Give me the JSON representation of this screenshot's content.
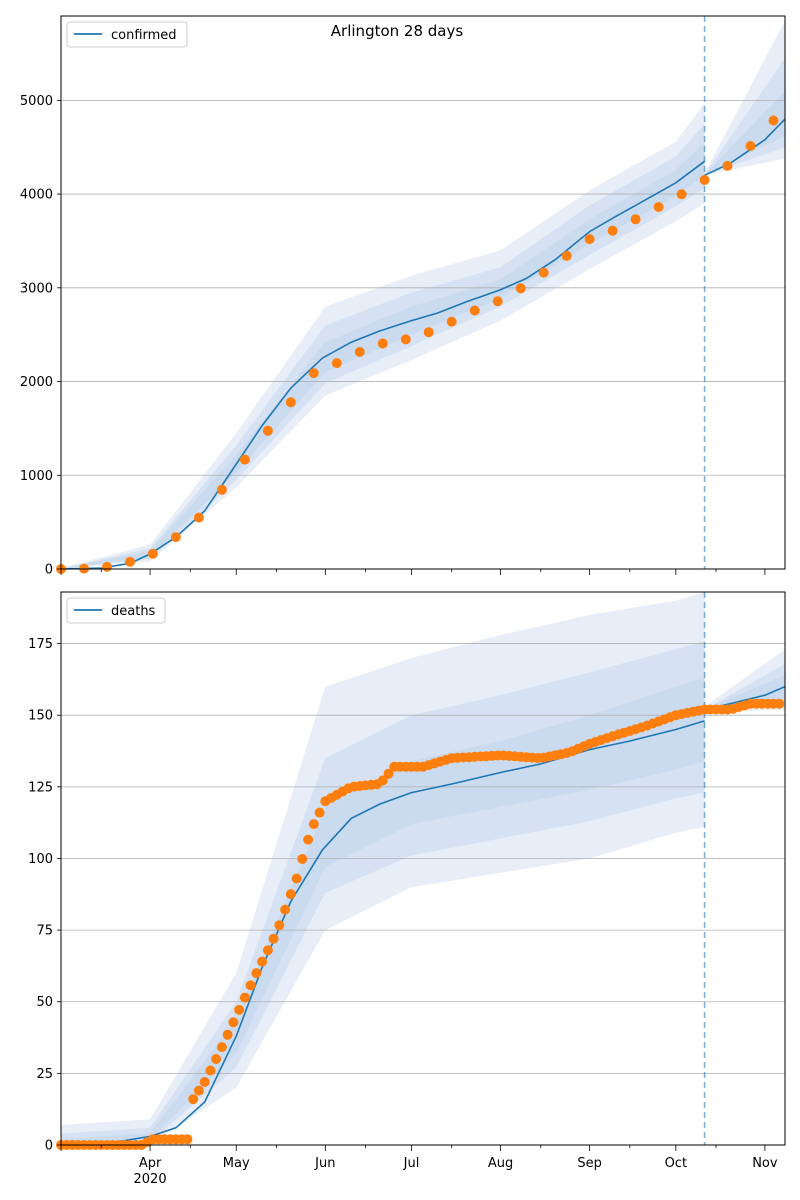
{
  "figure": {
    "title": "Arlington 28 days"
  },
  "colors": {
    "line": "#1f77b4",
    "points": "#ff7f0e",
    "band": "#aec7e8",
    "grid": "#b0b0b0"
  },
  "x_axis": {
    "month_labels": [
      "Apr",
      "May",
      "Jun",
      "Jul",
      "Aug",
      "Sep",
      "Oct",
      "Nov"
    ],
    "year_label": "2020",
    "range": [
      "2020-03-01",
      "2020-11-08"
    ],
    "forecast_start": "2020-10-11"
  },
  "chart_data": [
    {
      "type": "line",
      "legend": "confirmed",
      "legend_location": "upper left",
      "ylim": [
        0,
        5900
      ],
      "yticks": [
        0,
        1000,
        2000,
        3000,
        4000,
        5000
      ],
      "grid": "horizontal",
      "model_curve": [
        [
          "2020-03-01",
          0
        ],
        [
          "2020-03-15",
          10
        ],
        [
          "2020-03-25",
          60
        ],
        [
          "2020-04-01",
          160
        ],
        [
          "2020-04-10",
          340
        ],
        [
          "2020-04-20",
          620
        ],
        [
          "2020-05-01",
          1120
        ],
        [
          "2020-05-10",
          1530
        ],
        [
          "2020-05-20",
          1930
        ],
        [
          "2020-05-31",
          2250
        ],
        [
          "2020-06-10",
          2420
        ],
        [
          "2020-06-20",
          2540
        ],
        [
          "2020-07-01",
          2650
        ],
        [
          "2020-07-10",
          2730
        ],
        [
          "2020-07-20",
          2850
        ],
        [
          "2020-08-01",
          2980
        ],
        [
          "2020-08-10",
          3100
        ],
        [
          "2020-08-20",
          3300
        ],
        [
          "2020-09-01",
          3600
        ],
        [
          "2020-09-10",
          3760
        ],
        [
          "2020-09-20",
          3930
        ],
        [
          "2020-10-01",
          4120
        ],
        [
          "2020-10-11",
          4350
        ]
      ],
      "forecast_curve": [
        [
          "2020-10-11",
          4200
        ],
        [
          "2020-10-20",
          4330
        ],
        [
          "2020-11-01",
          4580
        ],
        [
          "2020-11-08",
          4800
        ]
      ],
      "observed": [
        [
          "2020-03-01",
          0
        ],
        [
          "2020-03-10",
          5
        ],
        [
          "2020-03-20",
          30
        ],
        [
          "2020-04-01",
          140
        ],
        [
          "2020-04-10",
          340
        ],
        [
          "2020-04-20",
          600
        ],
        [
          "2020-05-01",
          1050
        ],
        [
          "2020-05-10",
          1400
        ],
        [
          "2020-05-20",
          1780
        ],
        [
          "2020-05-27",
          2080
        ],
        [
          "2020-06-01",
          2130
        ],
        [
          "2020-06-10",
          2280
        ],
        [
          "2020-06-20",
          2400
        ],
        [
          "2020-07-01",
          2460
        ],
        [
          "2020-07-10",
          2560
        ],
        [
          "2020-07-20",
          2720
        ],
        [
          "2020-08-01",
          2870
        ],
        [
          "2020-08-10",
          3030
        ],
        [
          "2020-08-20",
          3250
        ],
        [
          "2020-09-01",
          3520
        ],
        [
          "2020-09-10",
          3620
        ],
        [
          "2020-09-20",
          3780
        ],
        [
          "2020-10-01",
          3960
        ],
        [
          "2020-10-11",
          4150
        ],
        [
          "2020-10-20",
          4320
        ],
        [
          "2020-11-01",
          4650
        ],
        [
          "2020-11-07",
          4920
        ]
      ],
      "uncertainty_bands": [
        {
          "lower": [
            [
              "2020-03-01",
              0
            ],
            [
              "2020-04-01",
              80
            ],
            [
              "2020-05-01",
              870
            ],
            [
              "2020-06-01",
              1850
            ],
            [
              "2020-07-01",
              2230
            ],
            [
              "2020-08-01",
              2650
            ],
            [
              "2020-09-01",
              3200
            ],
            [
              "2020-10-01",
              3710
            ],
            [
              "2020-10-11",
              3900
            ]
          ],
          "upper": [
            [
              "2020-03-01",
              10
            ],
            [
              "2020-04-01",
              260
            ],
            [
              "2020-05-01",
              1450
            ],
            [
              "2020-06-01",
              2800
            ],
            [
              "2020-07-01",
              3130
            ],
            [
              "2020-08-01",
              3400
            ],
            [
              "2020-09-01",
              4040
            ],
            [
              "2020-10-01",
              4560
            ],
            [
              "2020-10-11",
              4970
            ]
          ]
        },
        {
          "lower": [
            [
              "2020-03-01",
              0
            ],
            [
              "2020-04-01",
              110
            ],
            [
              "2020-05-01",
              950
            ],
            [
              "2020-06-01",
              1980
            ],
            [
              "2020-07-01",
              2380
            ],
            [
              "2020-08-01",
              2800
            ],
            [
              "2020-09-01",
              3350
            ],
            [
              "2020-10-01",
              3870
            ],
            [
              "2020-10-11",
              4060
            ]
          ],
          "upper": [
            [
              "2020-03-01",
              5
            ],
            [
              "2020-04-01",
              220
            ],
            [
              "2020-05-01",
              1320
            ],
            [
              "2020-06-01",
              2600
            ],
            [
              "2020-07-01",
              2950
            ],
            [
              "2020-08-01",
              3220
            ],
            [
              "2020-09-01",
              3880
            ],
            [
              "2020-10-01",
              4400
            ],
            [
              "2020-10-11",
              4750
            ]
          ]
        },
        {
          "lower": [
            [
              "2020-03-01",
              0
            ],
            [
              "2020-04-01",
              130
            ],
            [
              "2020-05-01",
              1030
            ],
            [
              "2020-06-01",
              2100
            ],
            [
              "2020-07-01",
              2500
            ],
            [
              "2020-08-01",
              2890
            ],
            [
              "2020-09-01",
              3470
            ],
            [
              "2020-10-01",
              3980
            ],
            [
              "2020-10-11",
              4200
            ]
          ],
          "upper": [
            [
              "2020-03-01",
              3
            ],
            [
              "2020-04-01",
              190
            ],
            [
              "2020-05-01",
              1220
            ],
            [
              "2020-06-01",
              2420
            ],
            [
              "2020-07-01",
              2800
            ],
            [
              "2020-08-01",
              3090
            ],
            [
              "2020-09-01",
              3730
            ],
            [
              "2020-10-01",
              4260
            ],
            [
              "2020-10-11",
              4550
            ]
          ]
        }
      ],
      "forecast_bands": [
        {
          "lower": [
            [
              "2020-10-11",
              4200
            ],
            [
              "2020-11-08",
              4380
            ]
          ],
          "upper": [
            [
              "2020-10-11",
              4220
            ],
            [
              "2020-11-08",
              5850
            ]
          ]
        },
        {
          "lower": [
            [
              "2020-10-11",
              4200
            ],
            [
              "2020-11-08",
              4500
            ]
          ],
          "upper": [
            [
              "2020-10-11",
              4210
            ],
            [
              "2020-11-08",
              5450
            ]
          ]
        },
        {
          "lower": [
            [
              "2020-10-11",
              4200
            ],
            [
              "2020-11-08",
              4620
            ]
          ],
          "upper": [
            [
              "2020-10-11",
              4205
            ],
            [
              "2020-11-08",
              5100
            ]
          ]
        }
      ]
    },
    {
      "type": "line",
      "legend": "deaths",
      "legend_location": "upper left",
      "ylim": [
        0,
        193
      ],
      "yticks": [
        0,
        25,
        50,
        75,
        100,
        125,
        150,
        175
      ],
      "grid": "horizontal",
      "model_curve": [
        [
          "2020-03-01",
          0
        ],
        [
          "2020-03-20",
          1
        ],
        [
          "2020-04-01",
          3
        ],
        [
          "2020-04-10",
          6
        ],
        [
          "2020-04-20",
          15
        ],
        [
          "2020-05-01",
          38
        ],
        [
          "2020-05-10",
          62
        ],
        [
          "2020-05-20",
          85
        ],
        [
          "2020-05-31",
          103
        ],
        [
          "2020-06-10",
          114
        ],
        [
          "2020-06-20",
          119
        ],
        [
          "2020-07-01",
          123
        ],
        [
          "2020-07-15",
          126
        ],
        [
          "2020-08-01",
          130
        ],
        [
          "2020-08-15",
          133
        ],
        [
          "2020-09-01",
          138
        ],
        [
          "2020-09-15",
          141
        ],
        [
          "2020-10-01",
          145
        ],
        [
          "2020-10-11",
          148
        ]
      ],
      "forecast_curve": [
        [
          "2020-10-11",
          152
        ],
        [
          "2020-10-20",
          154
        ],
        [
          "2020-11-01",
          157
        ],
        [
          "2020-11-08",
          160
        ]
      ],
      "observed": [
        [
          "2020-03-01",
          0
        ],
        [
          "2020-03-30",
          0
        ],
        [
          "2020-04-01",
          2
        ],
        [
          "2020-04-15",
          2
        ],
        [
          "2020-04-16",
          16
        ],
        [
          "2020-04-20",
          22
        ],
        [
          "2020-04-25",
          32
        ],
        [
          "2020-05-01",
          45
        ],
        [
          "2020-05-08",
          60
        ],
        [
          "2020-05-15",
          74
        ],
        [
          "2020-05-22",
          93
        ],
        [
          "2020-05-27",
          110
        ],
        [
          "2020-06-01",
          120
        ],
        [
          "2020-06-10",
          125
        ],
        [
          "2020-06-20",
          126
        ],
        [
          "2020-06-25",
          132
        ],
        [
          "2020-07-05",
          132
        ],
        [
          "2020-07-15",
          135
        ],
        [
          "2020-08-01",
          136
        ],
        [
          "2020-08-15",
          135
        ],
        [
          "2020-08-25",
          137
        ],
        [
          "2020-09-01",
          140
        ],
        [
          "2020-09-10",
          143
        ],
        [
          "2020-09-20",
          146
        ],
        [
          "2020-10-01",
          150
        ],
        [
          "2020-10-11",
          152
        ],
        [
          "2020-10-20",
          152
        ],
        [
          "2020-10-27",
          154
        ],
        [
          "2020-11-07",
          154
        ]
      ],
      "uncertainty_bands": [
        {
          "lower": [
            [
              "2020-03-01",
              0
            ],
            [
              "2020-04-01",
              0
            ],
            [
              "2020-05-01",
              20
            ],
            [
              "2020-06-01",
              75
            ],
            [
              "2020-07-01",
              90
            ],
            [
              "2020-08-01",
              95
            ],
            [
              "2020-09-01",
              100
            ],
            [
              "2020-10-01",
              109
            ],
            [
              "2020-10-11",
              111
            ]
          ],
          "upper": [
            [
              "2020-03-01",
              7
            ],
            [
              "2020-04-01",
              9
            ],
            [
              "2020-05-01",
              60
            ],
            [
              "2020-06-01",
              160
            ],
            [
              "2020-07-01",
              170
            ],
            [
              "2020-08-01",
              178
            ],
            [
              "2020-09-01",
              185
            ],
            [
              "2020-10-01",
              190
            ],
            [
              "2020-10-11",
              193
            ]
          ]
        },
        {
          "lower": [
            [
              "2020-03-01",
              0
            ],
            [
              "2020-04-01",
              1
            ],
            [
              "2020-05-01",
              27
            ],
            [
              "2020-06-01",
              88
            ],
            [
              "2020-07-01",
              101
            ],
            [
              "2020-08-01",
              107
            ],
            [
              "2020-09-01",
              113
            ],
            [
              "2020-10-01",
              121
            ],
            [
              "2020-10-11",
              123
            ]
          ],
          "upper": [
            [
              "2020-03-01",
              4
            ],
            [
              "2020-04-01",
              6
            ],
            [
              "2020-05-01",
              50
            ],
            [
              "2020-06-01",
              135
            ],
            [
              "2020-07-01",
              150
            ],
            [
              "2020-08-01",
              157
            ],
            [
              "2020-09-01",
              165
            ],
            [
              "2020-10-01",
              173
            ],
            [
              "2020-10-11",
              176
            ]
          ]
        },
        {
          "lower": [
            [
              "2020-03-01",
              0
            ],
            [
              "2020-04-01",
              2
            ],
            [
              "2020-05-01",
              32
            ],
            [
              "2020-06-01",
              97
            ],
            [
              "2020-07-01",
              112
            ],
            [
              "2020-08-01",
              118
            ],
            [
              "2020-09-01",
              124
            ],
            [
              "2020-10-01",
              131
            ],
            [
              "2020-10-11",
              134
            ]
          ],
          "upper": [
            [
              "2020-03-01",
              2
            ],
            [
              "2020-04-01",
              4
            ],
            [
              "2020-05-01",
              44
            ],
            [
              "2020-06-01",
              118
            ],
            [
              "2020-07-01",
              134
            ],
            [
              "2020-08-01",
              141
            ],
            [
              "2020-09-01",
              150
            ],
            [
              "2020-10-01",
              160
            ],
            [
              "2020-10-11",
              163
            ]
          ]
        }
      ],
      "forecast_bands": [
        {
          "lower": [
            [
              "2020-10-11",
              151
            ],
            [
              "2020-11-08",
              152
            ]
          ],
          "upper": [
            [
              "2020-10-11",
              153
            ],
            [
              "2020-11-08",
              173
            ]
          ]
        },
        {
          "lower": [
            [
              "2020-10-11",
              151
            ],
            [
              "2020-11-08",
              154
            ]
          ],
          "upper": [
            [
              "2020-10-11",
              152
            ],
            [
              "2020-11-08",
              168
            ]
          ]
        },
        {
          "lower": [
            [
              "2020-10-11",
              151
            ],
            [
              "2020-11-08",
              156
            ]
          ],
          "upper": [
            [
              "2020-10-11",
              152
            ],
            [
              "2020-11-08",
              164
            ]
          ]
        }
      ]
    }
  ]
}
